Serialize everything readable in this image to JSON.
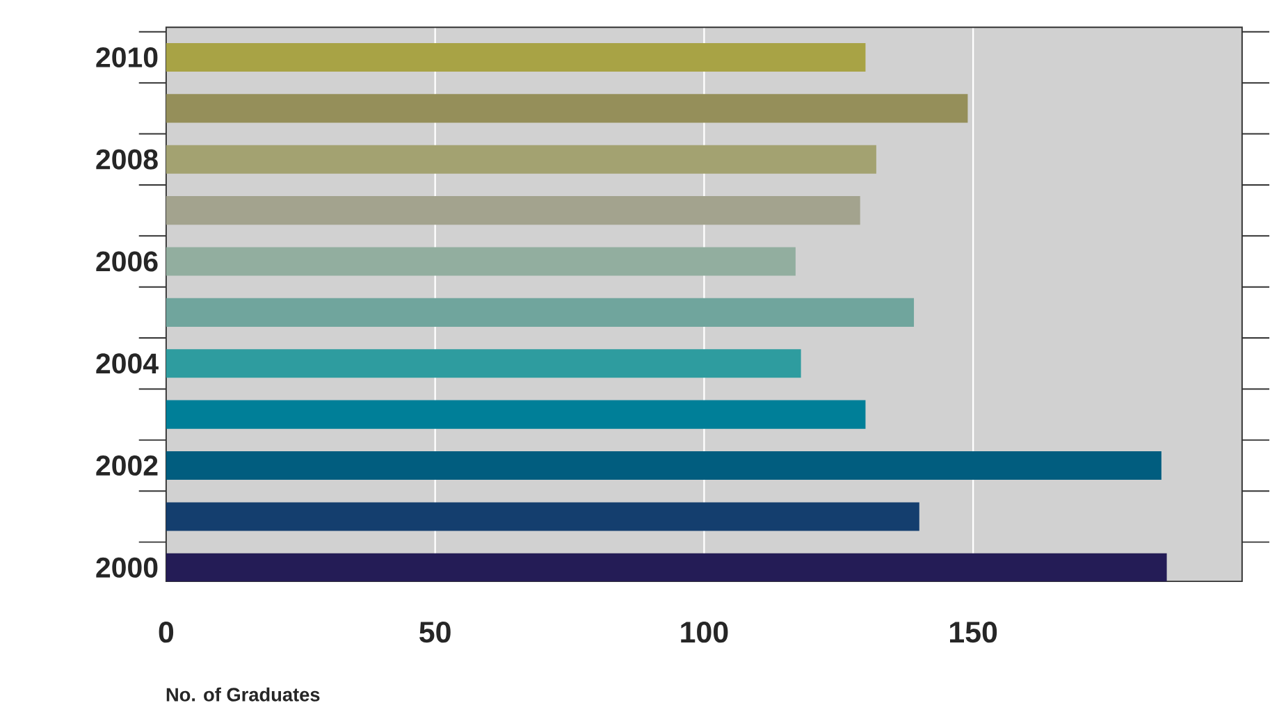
{
  "chart_data": {
    "type": "bar",
    "orientation": "horizontal",
    "xlabel": "No. of Graduates",
    "categories": [
      "2010",
      null,
      "2008",
      null,
      "2006",
      null,
      "2004",
      null,
      "2002",
      null,
      "2000"
    ],
    "values": [
      130,
      149,
      132,
      129,
      117,
      139,
      118,
      130,
      185,
      140,
      186
    ],
    "colors": [
      "#a8a345",
      "#958f5a",
      "#a3a271",
      "#a3a38e",
      "#92ae9f",
      "#70a59d",
      "#2e9c9f",
      "#007f98",
      "#015d7f",
      "#143e6e",
      "#241c56"
    ],
    "xlim": [
      0,
      200
    ],
    "xticks": [
      0,
      50,
      100,
      150
    ],
    "grid": "x"
  }
}
